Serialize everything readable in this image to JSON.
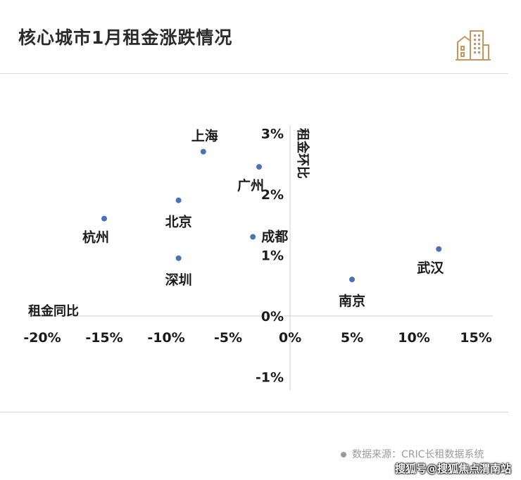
{
  "header": {
    "title": "核心城市1月租金涨跌情况",
    "logo_icon": "buildings-icon"
  },
  "chart_data": {
    "type": "scatter",
    "title": "核心城市1月租金涨跌情况",
    "xlabel": "租金同比",
    "ylabel": "租金环比",
    "xlim": [
      -20,
      15
    ],
    "ylim": [
      -1,
      3
    ],
    "x_ticks": [
      "-20%",
      "-15%",
      "-10%",
      "-5%",
      "0%",
      "5%",
      "10%",
      "15%"
    ],
    "x_tick_values": [
      -20,
      -15,
      -10,
      -5,
      0,
      5,
      10,
      15
    ],
    "y_ticks": [
      "-1%",
      "0%",
      "1%",
      "2%",
      "3%"
    ],
    "y_tick_values": [
      -1,
      0,
      1,
      2,
      3
    ],
    "grid": false,
    "point_color": "#4a72b8",
    "points": [
      {
        "label": "上海",
        "x": -7.0,
        "y": 2.7,
        "label_pos": "above"
      },
      {
        "label": "广州",
        "x": -2.5,
        "y": 2.45,
        "label_pos": "below-left"
      },
      {
        "label": "北京",
        "x": -9.0,
        "y": 1.9,
        "label_pos": "below"
      },
      {
        "label": "杭州",
        "x": -15.0,
        "y": 1.6,
        "label_pos": "below-left"
      },
      {
        "label": "成都",
        "x": -3.0,
        "y": 1.3,
        "label_pos": "right-up"
      },
      {
        "label": "深圳",
        "x": -9.0,
        "y": 0.95,
        "label_pos": "below"
      },
      {
        "label": "南京",
        "x": 5.0,
        "y": 0.6,
        "label_pos": "below"
      },
      {
        "label": "武汉",
        "x": 12.0,
        "y": 1.1,
        "label_pos": "below-left"
      }
    ]
  },
  "footer": {
    "source": "数据来源：CRIC长租数据系统",
    "watermark": "搜狐号@搜狐焦点渭南站"
  },
  "colors": {
    "logo_accent": "#c9955c",
    "divider": "#d9d9d9",
    "axis": "#cfcfcf"
  }
}
